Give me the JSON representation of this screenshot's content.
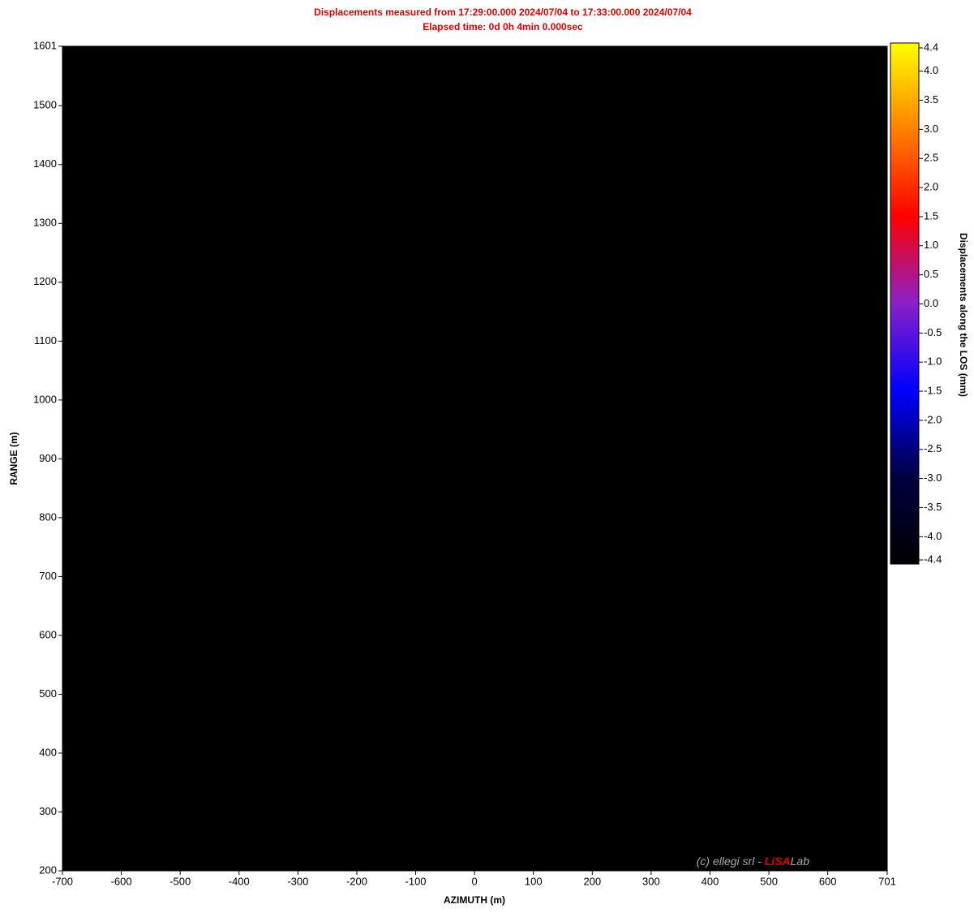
{
  "chart_data": {
    "type": "heatmap",
    "title": "Displacements measured from 17:29:00.000 2024/07/04 to 17:33:00.000 2024/07/04",
    "subtitle": "Elapsed time: 0d 0h 4min 0.000sec",
    "x_label": "AZIMUTH (m)",
    "y_label": "RANGE (m)",
    "colorbar_label": "Displacements along the LOS (mm)",
    "xlim": [
      -700,
      701
    ],
    "ylim": [
      200,
      1601
    ],
    "xticks": [
      -700,
      -600,
      -500,
      -400,
      -300,
      -200,
      -100,
      0,
      100,
      200,
      300,
      400,
      500,
      600,
      701
    ],
    "yticks": [
      200,
      300,
      400,
      500,
      600,
      700,
      800,
      900,
      1000,
      1100,
      1200,
      1300,
      1400,
      1500,
      1601
    ],
    "clim": [
      -4.4,
      4.4
    ],
    "cticks": [
      -4.4,
      {
        "value": -4,
        "label": "-4.0"
      },
      -3.5,
      {
        "value": -3,
        "label": "-3.0"
      },
      -2.5,
      {
        "value": -2,
        "label": "-2.0"
      },
      -1.5,
      {
        "value": -1,
        "label": "-1.0"
      },
      -0.5,
      {
        "value": 0,
        "label": "0.0"
      },
      0.5,
      {
        "value": 1,
        "label": "1.0"
      },
      1.5,
      {
        "value": 2,
        "label": "2.0"
      },
      2.5,
      {
        "value": 3,
        "label": "3.0"
      },
      3.5,
      {
        "value": 4,
        "label": "4.0"
      },
      4.4
    ],
    "colorscale": [
      "#000000",
      "#000040",
      "#0000ff",
      "#8a20c8",
      "#ff0000",
      "#ff8000",
      "#ffff00"
    ],
    "watermark": {
      "prefix": "(c) ellegi srl - ",
      "brand": "LiSA",
      "suffix": "Lab"
    }
  }
}
